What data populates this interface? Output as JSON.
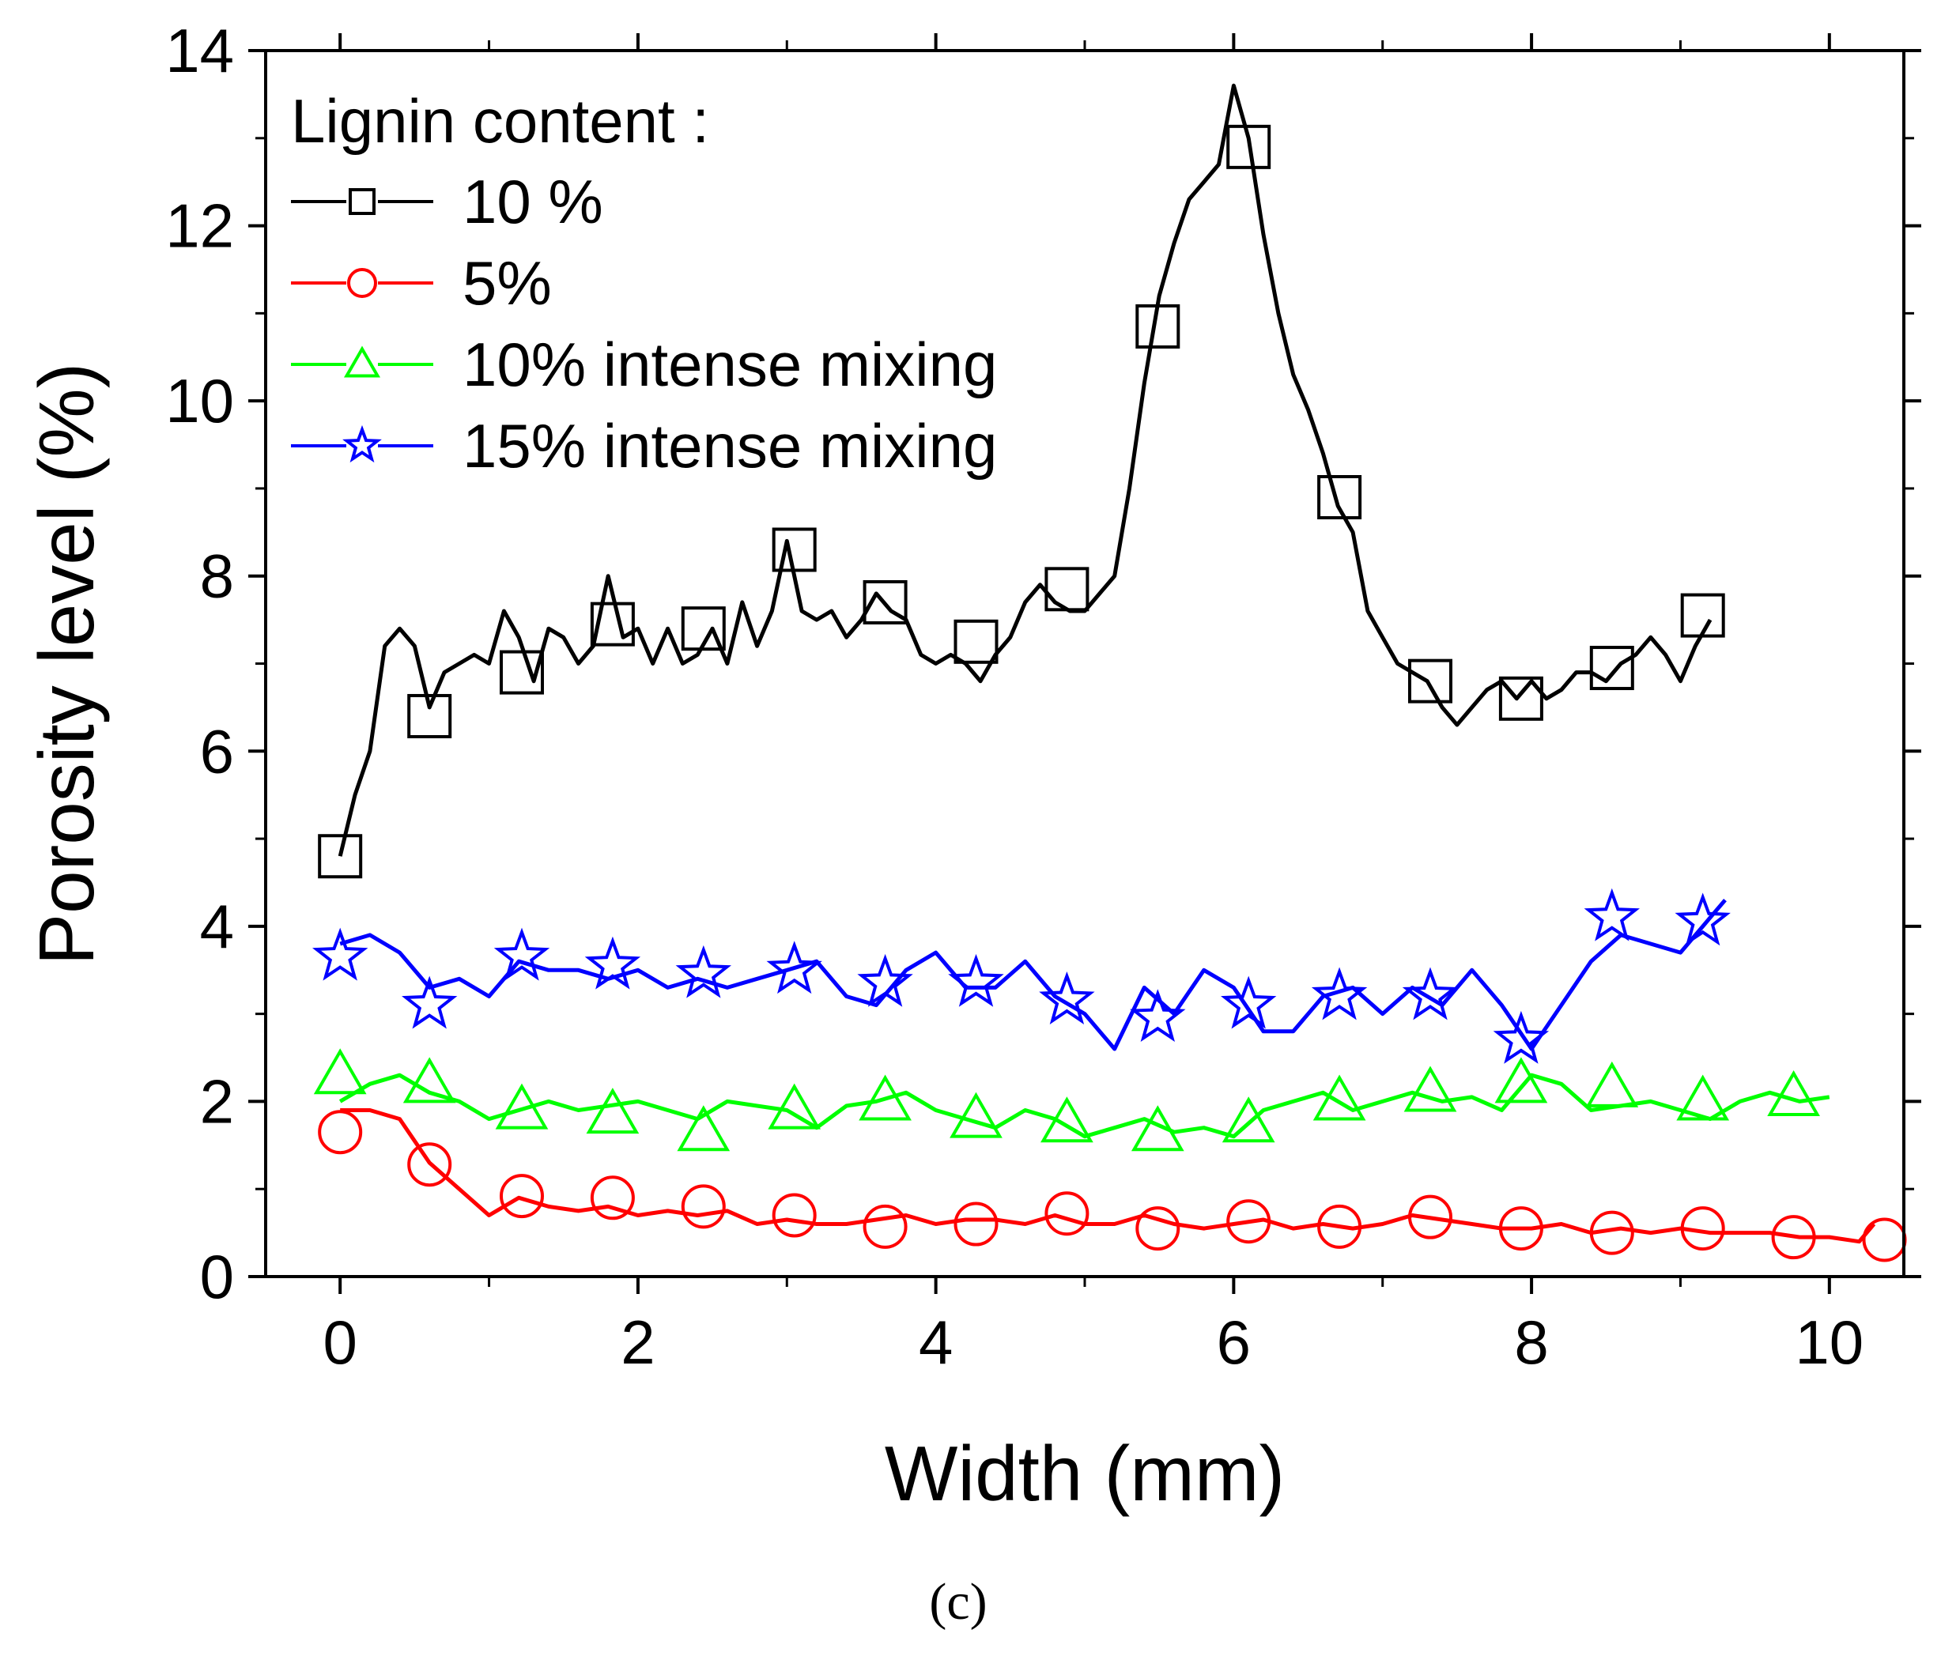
{
  "chart_data": {
    "type": "line",
    "title": "",
    "xlabel": "Width (mm)",
    "ylabel": "Porosity level (%)",
    "xlim": [
      -0.5,
      10.5
    ],
    "ylim": [
      0,
      14
    ],
    "xticks": [
      "0",
      "2",
      "4",
      "6",
      "8",
      "10"
    ],
    "yticks": [
      "0",
      "2",
      "4",
      "6",
      "8",
      "10",
      "12",
      "14"
    ],
    "legend_title": "Lignin content :",
    "legend_position": "top-left",
    "caption": "(c)",
    "series": [
      {
        "name": "10 %",
        "color": "#000000",
        "marker": "square",
        "x": [
          0.0,
          0.1,
          0.2,
          0.3,
          0.4,
          0.5,
          0.6,
          0.7,
          0.8,
          0.9,
          1.0,
          1.1,
          1.2,
          1.3,
          1.4,
          1.5,
          1.6,
          1.7,
          1.8,
          1.9,
          2.0,
          2.1,
          2.2,
          2.3,
          2.4,
          2.5,
          2.6,
          2.7,
          2.8,
          2.9,
          3.0,
          3.1,
          3.2,
          3.3,
          3.4,
          3.5,
          3.6,
          3.7,
          3.8,
          3.9,
          4.0,
          4.1,
          4.2,
          4.3,
          4.4,
          4.5,
          4.6,
          4.7,
          4.8,
          4.9,
          5.0,
          5.1,
          5.2,
          5.3,
          5.4,
          5.5,
          5.6,
          5.7,
          5.8,
          5.9,
          6.0,
          6.1,
          6.2,
          6.3,
          6.4,
          6.5,
          6.6,
          6.7,
          6.8,
          6.9,
          7.0,
          7.1,
          7.2,
          7.3,
          7.4,
          7.5,
          7.6,
          7.7,
          7.8,
          7.9,
          8.0,
          8.1,
          8.2,
          8.3,
          8.4,
          8.5,
          8.6,
          8.7,
          8.8,
          8.9,
          9.0,
          9.1,
          9.2
        ],
        "values": [
          4.8,
          5.5,
          6.0,
          7.2,
          7.4,
          7.2,
          6.5,
          6.9,
          7.0,
          7.1,
          7.0,
          7.6,
          7.3,
          6.8,
          7.4,
          7.3,
          7.0,
          7.2,
          8.0,
          7.3,
          7.4,
          7.0,
          7.4,
          7.0,
          7.1,
          7.4,
          7.0,
          7.7,
          7.2,
          7.6,
          8.4,
          7.6,
          7.5,
          7.6,
          7.3,
          7.5,
          7.8,
          7.6,
          7.5,
          7.1,
          7.0,
          7.1,
          7.0,
          6.8,
          7.1,
          7.3,
          7.7,
          7.9,
          7.7,
          7.6,
          7.6,
          7.8,
          8.0,
          9.0,
          10.2,
          11.2,
          11.8,
          12.3,
          12.5,
          12.7,
          13.6,
          13.0,
          11.9,
          11.0,
          10.3,
          9.9,
          9.4,
          8.8,
          8.5,
          7.6,
          7.3,
          7.0,
          6.9,
          6.8,
          6.5,
          6.3,
          6.5,
          6.7,
          6.8,
          6.6,
          6.8,
          6.6,
          6.7,
          6.9,
          6.9,
          6.8,
          7.0,
          7.1,
          7.3,
          7.1,
          6.8,
          7.2,
          7.5
        ],
        "marker_x": [
          0.0,
          0.6,
          1.22,
          1.83,
          2.44,
          3.05,
          3.66,
          4.27,
          4.88,
          5.49,
          6.1,
          6.71,
          7.32,
          7.93,
          8.54,
          9.15
        ],
        "marker_y": [
          4.8,
          6.4,
          6.9,
          7.45,
          7.4,
          8.3,
          7.7,
          7.25,
          7.85,
          10.85,
          12.9,
          8.9,
          6.8,
          6.6,
          6.95,
          7.55
        ]
      },
      {
        "name": "5%",
        "color": "#ff0000",
        "marker": "circle",
        "x": [
          0.0,
          0.2,
          0.4,
          0.6,
          0.8,
          1.0,
          1.2,
          1.4,
          1.6,
          1.8,
          2.0,
          2.2,
          2.4,
          2.6,
          2.8,
          3.0,
          3.2,
          3.4,
          3.6,
          3.8,
          4.0,
          4.2,
          4.4,
          4.6,
          4.8,
          5.0,
          5.2,
          5.4,
          5.6,
          5.8,
          6.0,
          6.2,
          6.4,
          6.6,
          6.8,
          7.0,
          7.2,
          7.4,
          7.6,
          7.8,
          8.0,
          8.2,
          8.4,
          8.6,
          8.8,
          9.0,
          9.2,
          9.4,
          9.6,
          9.8,
          10.0,
          10.2,
          10.3
        ],
        "values": [
          1.9,
          1.9,
          1.8,
          1.3,
          1.0,
          0.7,
          0.9,
          0.8,
          0.75,
          0.8,
          0.7,
          0.75,
          0.7,
          0.75,
          0.6,
          0.65,
          0.6,
          0.6,
          0.65,
          0.7,
          0.6,
          0.65,
          0.65,
          0.6,
          0.7,
          0.6,
          0.6,
          0.7,
          0.6,
          0.55,
          0.6,
          0.65,
          0.55,
          0.6,
          0.55,
          0.6,
          0.7,
          0.65,
          0.6,
          0.55,
          0.55,
          0.6,
          0.5,
          0.55,
          0.5,
          0.55,
          0.5,
          0.5,
          0.5,
          0.45,
          0.45,
          0.4,
          0.6
        ],
        "marker_x": [
          0.0,
          0.6,
          1.22,
          1.83,
          2.44,
          3.05,
          3.66,
          4.27,
          4.88,
          5.49,
          6.1,
          6.71,
          7.32,
          7.93,
          8.54,
          9.15,
          9.76,
          10.37
        ],
        "marker_y": [
          1.65,
          1.28,
          0.92,
          0.9,
          0.8,
          0.7,
          0.57,
          0.6,
          0.72,
          0.55,
          0.63,
          0.57,
          0.68,
          0.55,
          0.5,
          0.55,
          0.45,
          0.42
        ]
      },
      {
        "name": "10% intense mixing",
        "color": "#00ff00",
        "marker": "triangle",
        "x": [
          0.0,
          0.2,
          0.4,
          0.6,
          0.8,
          1.0,
          1.2,
          1.4,
          1.6,
          1.8,
          2.0,
          2.2,
          2.4,
          2.6,
          2.8,
          3.0,
          3.2,
          3.4,
          3.6,
          3.8,
          4.0,
          4.2,
          4.4,
          4.6,
          4.8,
          5.0,
          5.2,
          5.4,
          5.6,
          5.8,
          6.0,
          6.2,
          6.4,
          6.6,
          6.8,
          7.0,
          7.2,
          7.4,
          7.6,
          7.8,
          8.0,
          8.2,
          8.4,
          8.6,
          8.8,
          9.0,
          9.2,
          9.4,
          9.6,
          9.8,
          10.0
        ],
        "values": [
          2.0,
          2.2,
          2.3,
          2.1,
          2.0,
          1.8,
          1.9,
          2.0,
          1.9,
          1.95,
          2.0,
          1.9,
          1.8,
          2.0,
          1.95,
          1.9,
          1.7,
          1.95,
          2.0,
          2.1,
          1.9,
          1.8,
          1.7,
          1.9,
          1.8,
          1.6,
          1.7,
          1.8,
          1.65,
          1.7,
          1.6,
          1.9,
          2.0,
          2.1,
          1.9,
          2.0,
          2.1,
          2.0,
          2.05,
          1.9,
          2.3,
          2.2,
          1.9,
          1.95,
          2.0,
          1.9,
          1.8,
          2.0,
          2.1,
          2.0,
          2.05
        ],
        "marker_x": [
          0.0,
          0.6,
          1.22,
          1.83,
          2.44,
          3.05,
          3.66,
          4.27,
          4.88,
          5.49,
          6.1,
          6.71,
          7.32,
          7.93,
          8.54,
          9.15,
          9.76
        ],
        "marker_y": [
          2.3,
          2.2,
          1.9,
          1.85,
          1.65,
          1.9,
          2.0,
          1.8,
          1.75,
          1.65,
          1.75,
          2.0,
          2.1,
          2.2,
          2.15,
          2.0,
          2.05
        ]
      },
      {
        "name": "15% intense mixing",
        "color": "#0000ff",
        "marker": "star",
        "x": [
          0.0,
          0.2,
          0.4,
          0.6,
          0.8,
          1.0,
          1.2,
          1.4,
          1.6,
          1.8,
          2.0,
          2.2,
          2.4,
          2.6,
          2.8,
          3.0,
          3.2,
          3.4,
          3.6,
          3.8,
          4.0,
          4.2,
          4.4,
          4.6,
          4.8,
          5.0,
          5.2,
          5.4,
          5.6,
          5.8,
          6.0,
          6.2,
          6.4,
          6.6,
          6.8,
          7.0,
          7.2,
          7.4,
          7.6,
          7.8,
          8.0,
          8.2,
          8.4,
          8.6,
          8.8,
          9.0,
          9.2,
          9.3
        ],
        "values": [
          3.8,
          3.9,
          3.7,
          3.3,
          3.4,
          3.2,
          3.6,
          3.5,
          3.5,
          3.4,
          3.5,
          3.3,
          3.4,
          3.3,
          3.4,
          3.5,
          3.6,
          3.2,
          3.1,
          3.5,
          3.7,
          3.3,
          3.3,
          3.6,
          3.2,
          3.0,
          2.6,
          3.3,
          3.0,
          3.5,
          3.3,
          2.8,
          2.8,
          3.2,
          3.3,
          3.0,
          3.3,
          3.1,
          3.5,
          3.1,
          2.6,
          3.1,
          3.6,
          3.9,
          3.8,
          3.7,
          4.1,
          4.3
        ],
        "marker_x": [
          0.0,
          0.6,
          1.22,
          1.83,
          2.44,
          3.05,
          3.66,
          4.27,
          4.88,
          5.49,
          6.1,
          6.71,
          7.32,
          7.93,
          8.54,
          9.15
        ],
        "marker_y": [
          3.65,
          3.1,
          3.65,
          3.55,
          3.45,
          3.5,
          3.35,
          3.35,
          3.15,
          2.95,
          3.1,
          3.2,
          3.2,
          2.7,
          4.1,
          4.05
        ]
      }
    ]
  }
}
